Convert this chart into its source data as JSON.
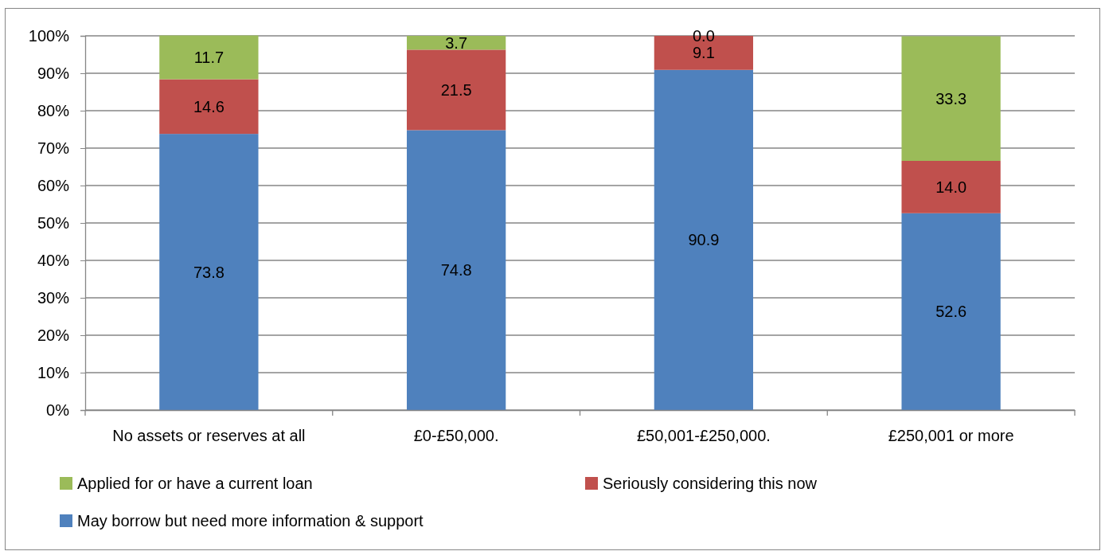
{
  "chart_data": {
    "type": "bar",
    "stacked": true,
    "categories": [
      "No assets or reserves at all",
      "£0-£50,000.",
      "£50,001-£250,000.",
      "£250,001 or more"
    ],
    "series": [
      {
        "name": "May borrow but need more information & support",
        "color": "#4f81bd",
        "values": [
          73.8,
          74.8,
          90.9,
          52.6
        ],
        "value_labels": [
          "73.8",
          "74.8",
          "90.9",
          "52.6"
        ]
      },
      {
        "name": "Seriously considering this now",
        "color": "#c0504d",
        "values": [
          14.6,
          21.5,
          9.1,
          14.0
        ],
        "value_labels": [
          "14.6",
          "21.5",
          "9.1",
          "14.0"
        ]
      },
      {
        "name": "Applied for or have a current loan",
        "color": "#9bbb59",
        "values": [
          11.7,
          3.7,
          0.0,
          33.3
        ],
        "value_labels": [
          "11.7",
          "3.7",
          "0.0",
          "33.3"
        ]
      }
    ],
    "ylim": [
      0,
      100
    ],
    "yticks": [
      {
        "value": 0,
        "label": "0%"
      },
      {
        "value": 10,
        "label": "10%"
      },
      {
        "value": 20,
        "label": "20%"
      },
      {
        "value": 30,
        "label": "30%"
      },
      {
        "value": 40,
        "label": "40%"
      },
      {
        "value": 50,
        "label": "50%"
      },
      {
        "value": 60,
        "label": "60%"
      },
      {
        "value": 70,
        "label": "70%"
      },
      {
        "value": 80,
        "label": "80%"
      },
      {
        "value": 90,
        "label": "90%"
      },
      {
        "value": 100,
        "label": "100%"
      }
    ],
    "grid": "y",
    "legend": "bottom"
  }
}
